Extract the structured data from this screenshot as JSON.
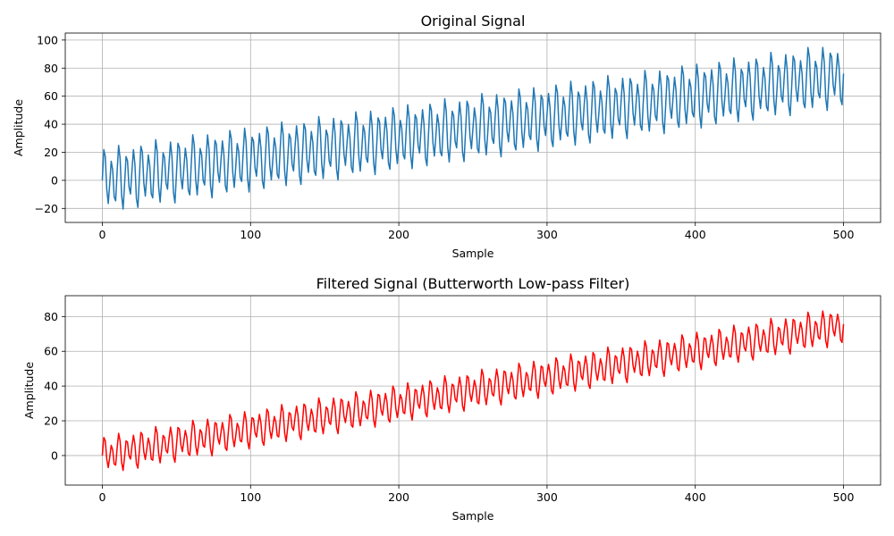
{
  "chart_data": [
    {
      "type": "line",
      "title": "Original Signal",
      "xlabel": "Sample",
      "ylabel": "Amplitude",
      "xlim": [
        -25,
        525
      ],
      "ylim": [
        -30,
        105
      ],
      "xticks": [
        0,
        100,
        200,
        300,
        400,
        500
      ],
      "yticks": [
        -20,
        0,
        20,
        40,
        60,
        80,
        100
      ],
      "grid": true,
      "series": [
        {
          "color": "#1f77b4",
          "signal": {
            "samples": 501,
            "trend_start": 0,
            "trend_end": 75,
            "components": [
              {
                "amplitude": 19,
                "period": 5.0
              },
              {
                "amplitude": 5.5,
                "period": 8.47
              }
            ]
          }
        }
      ]
    },
    {
      "type": "line",
      "title": "Filtered Signal (Butterworth Low-pass Filter)",
      "xlabel": "Sample",
      "ylabel": "Amplitude",
      "xlim": [
        -25,
        525
      ],
      "ylim": [
        -17,
        92
      ],
      "xticks": [
        0,
        100,
        200,
        300,
        400,
        500
      ],
      "yticks": [
        0,
        20,
        40,
        60,
        80
      ],
      "grid": true,
      "series": [
        {
          "color": "#ff0000",
          "signal": {
            "samples": 501,
            "trend_start": 0,
            "trend_end": 75,
            "components": [
              {
                "amplitude": 8.5,
                "period": 5.0
              },
              {
                "amplitude": 3.2,
                "period": 8.47
              }
            ]
          }
        }
      ]
    }
  ]
}
